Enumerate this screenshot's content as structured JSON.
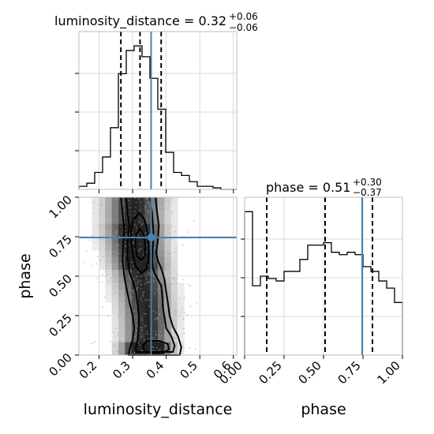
{
  "chart_data": {
    "type": "corner",
    "parameters": [
      "luminosity_distance",
      "phase"
    ],
    "truth": {
      "luminosity_distance": 0.355,
      "phase": 0.745
    },
    "colors": {
      "truth": "#4682b4",
      "histogram": "#000000",
      "contour": "#000000",
      "grid": "#cfcfcf"
    },
    "panels": {
      "luminosity_distance": {
        "title_main": "luminosity_distance = 0.32",
        "title_sup": "+0.06",
        "title_sub": "−0.06",
        "quantiles": [
          0.265,
          0.322,
          0.385
        ],
        "range": [
          0.14,
          0.61
        ],
        "ticks": [
          0.2,
          0.3,
          0.4,
          0.5,
          0.6
        ],
        "tick_labels": [
          "0.2",
          "0.3",
          "0.4",
          "0.5",
          "0.6"
        ],
        "xlabel": "luminosity_distance",
        "bin_edges": [
          0.14,
          0.1635,
          0.187,
          0.2105,
          0.234,
          0.2575,
          0.281,
          0.3045,
          0.328,
          0.3515,
          0.375,
          0.3985,
          0.422,
          0.4455,
          0.469,
          0.4925,
          0.516,
          0.5395,
          0.563,
          0.5865,
          0.61
        ],
        "counts": [
          2,
          4,
          11,
          21,
          40,
          75,
          90,
          93,
          86,
          72,
          52,
          24,
          11,
          9,
          5,
          2,
          2,
          1,
          0,
          0
        ]
      },
      "phase": {
        "title_main": "phase = 0.51",
        "title_sup": "+0.30",
        "title_sub": "−0.37",
        "quantiles": [
          0.14,
          0.51,
          0.81
        ],
        "range": [
          0.0,
          1.0
        ],
        "ticks": [
          0.0,
          0.25,
          0.5,
          0.75,
          1.0
        ],
        "tick_labels": [
          "0.00",
          "0.25",
          "0.50",
          "0.75",
          "1.00"
        ],
        "xlabel": "phase",
        "bin_edges": [
          0.0,
          0.05,
          0.1,
          0.15,
          0.2,
          0.25,
          0.3,
          0.35,
          0.4,
          0.45,
          0.5,
          0.55,
          0.6,
          0.65,
          0.7,
          0.75,
          0.8,
          0.85,
          0.9,
          0.95,
          1.0
        ],
        "counts": [
          60,
          29,
          33,
          32,
          31,
          35,
          35,
          40,
          46,
          46,
          47,
          43,
          42,
          43,
          42,
          37,
          35,
          31,
          28,
          22
        ]
      }
    },
    "joint": {
      "xlabel": "luminosity_distance",
      "ylabel": "phase",
      "xrange": [
        0.14,
        0.61
      ],
      "yrange": [
        0.0,
        1.0
      ],
      "xticks": [
        0.2,
        0.3,
        0.4,
        0.5,
        0.6
      ],
      "xtick_labels": [
        "0.2",
        "0.3",
        "0.4",
        "0.5",
        "0.6"
      ],
      "yticks": [
        0.0,
        0.25,
        0.5,
        0.75,
        1.0
      ],
      "ytick_labels": [
        "0.00",
        "0.25",
        "0.50",
        "0.75",
        "1.00"
      ],
      "contours": [
        [
          [
            0.265,
            1.0
          ],
          [
            0.27,
            0.9
          ],
          [
            0.275,
            0.8
          ],
          [
            0.272,
            0.7
          ],
          [
            0.27,
            0.6
          ],
          [
            0.275,
            0.5
          ],
          [
            0.282,
            0.42
          ],
          [
            0.29,
            0.34
          ],
          [
            0.3,
            0.25
          ],
          [
            0.305,
            0.17
          ],
          [
            0.3,
            0.1
          ],
          [
            0.29,
            0.03
          ],
          [
            0.288,
            0.0
          ],
          [
            0.44,
            0.0
          ],
          [
            0.445,
            0.05
          ],
          [
            0.435,
            0.12
          ],
          [
            0.42,
            0.18
          ],
          [
            0.41,
            0.25
          ],
          [
            0.405,
            0.33
          ],
          [
            0.4,
            0.4
          ],
          [
            0.395,
            0.48
          ],
          [
            0.385,
            0.55
          ],
          [
            0.375,
            0.6
          ],
          [
            0.37,
            0.65
          ],
          [
            0.375,
            0.72
          ],
          [
            0.378,
            0.82
          ],
          [
            0.372,
            0.92
          ],
          [
            0.368,
            1.0
          ]
        ],
        [
          [
            0.28,
            1.0
          ],
          [
            0.285,
            0.9
          ],
          [
            0.29,
            0.82
          ],
          [
            0.285,
            0.72
          ],
          [
            0.285,
            0.62
          ],
          [
            0.29,
            0.53
          ],
          [
            0.3,
            0.47
          ],
          [
            0.31,
            0.4
          ],
          [
            0.315,
            0.32
          ],
          [
            0.318,
            0.25
          ],
          [
            0.318,
            0.18
          ],
          [
            0.315,
            0.1
          ],
          [
            0.31,
            0.05
          ],
          [
            0.31,
            0.02
          ],
          [
            0.42,
            0.02
          ],
          [
            0.425,
            0.06
          ],
          [
            0.415,
            0.12
          ],
          [
            0.4,
            0.17
          ],
          [
            0.395,
            0.24
          ],
          [
            0.39,
            0.3
          ],
          [
            0.388,
            0.38
          ],
          [
            0.385,
            0.44
          ],
          [
            0.37,
            0.5
          ],
          [
            0.36,
            0.55
          ],
          [
            0.358,
            0.6
          ],
          [
            0.36,
            0.68
          ],
          [
            0.362,
            0.78
          ],
          [
            0.358,
            0.9
          ],
          [
            0.352,
            1.0
          ]
        ],
        [
          [
            0.335,
            0.02
          ],
          [
            0.33,
            0.06
          ],
          [
            0.345,
            0.09
          ],
          [
            0.38,
            0.09
          ],
          [
            0.405,
            0.07
          ],
          [
            0.408,
            0.035
          ],
          [
            0.39,
            0.015
          ],
          [
            0.36,
            0.012
          ],
          [
            0.335,
            0.02
          ]
        ],
        [
          [
            0.3,
            0.85
          ],
          [
            0.295,
            0.78
          ],
          [
            0.297,
            0.7
          ],
          [
            0.302,
            0.62
          ],
          [
            0.31,
            0.56
          ],
          [
            0.325,
            0.52
          ],
          [
            0.34,
            0.54
          ],
          [
            0.347,
            0.6
          ],
          [
            0.348,
            0.68
          ],
          [
            0.344,
            0.78
          ],
          [
            0.335,
            0.86
          ],
          [
            0.32,
            0.9
          ],
          [
            0.3,
            0.85
          ]
        ],
        [
          [
            0.31,
            0.76
          ],
          [
            0.308,
            0.69
          ],
          [
            0.313,
            0.63
          ],
          [
            0.325,
            0.6
          ],
          [
            0.336,
            0.63
          ],
          [
            0.338,
            0.7
          ],
          [
            0.332,
            0.77
          ],
          [
            0.32,
            0.8
          ],
          [
            0.31,
            0.76
          ]
        ]
      ]
    }
  }
}
